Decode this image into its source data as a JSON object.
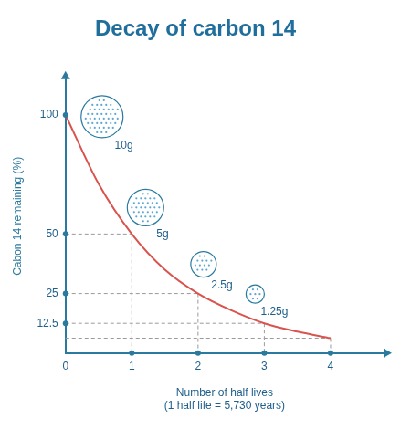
{
  "chart_data": {
    "type": "line",
    "title": "Decay of carbon 14",
    "xlabel": [
      "Number of half lives",
      "(1 half life = 5,730 years)"
    ],
    "ylabel": "Cabon 14 remaining (%)",
    "x": [
      0,
      0.5,
      1,
      1.5,
      2,
      2.5,
      3,
      3.5,
      4
    ],
    "values": [
      100,
      71,
      50,
      35,
      25,
      18,
      12.5,
      9,
      6.25
    ],
    "color": "#d9534f",
    "marker": "none",
    "xlim": [
      0,
      4.8
    ],
    "ylim": [
      0,
      115
    ],
    "xticks": [
      0,
      1,
      2,
      3,
      4
    ],
    "yticks": [
      12.5,
      25,
      50,
      100
    ],
    "annotations": [
      "10g",
      "5g",
      "2.5g",
      "1.25g"
    ]
  }
}
